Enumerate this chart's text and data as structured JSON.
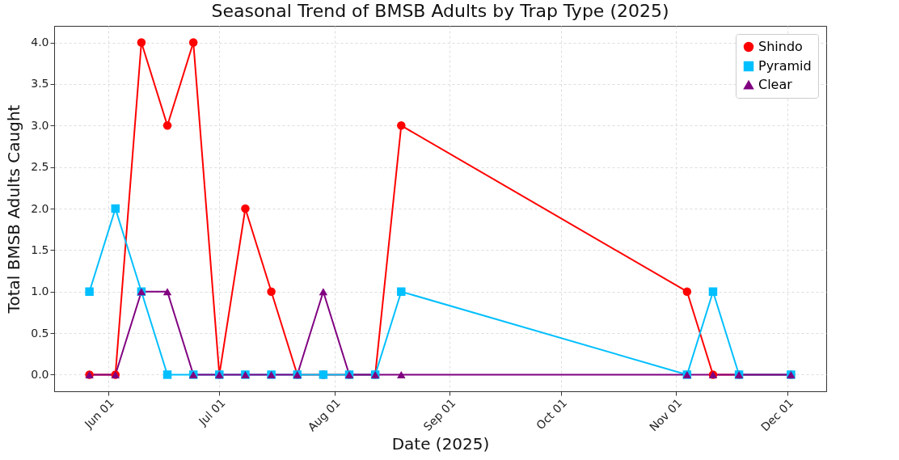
{
  "chart_data": {
    "type": "line",
    "title": "Seasonal Trend of BMSB Adults by Trap Type (2025)",
    "xlabel": "Date (2025)",
    "ylabel": "Total BMSB Adults Caught",
    "x": [
      "2025-05-27",
      "2025-06-03",
      "2025-06-10",
      "2025-06-17",
      "2025-06-24",
      "2025-07-01",
      "2025-07-08",
      "2025-07-15",
      "2025-07-22",
      "2025-07-29",
      "2025-08-05",
      "2025-08-12",
      "2025-08-19",
      "2025-11-04",
      "2025-11-11",
      "2025-11-18",
      "2025-12-02"
    ],
    "series": [
      {
        "name": "Shindo",
        "color": "#ff0000",
        "marker": "circle",
        "values": [
          0,
          0,
          4,
          3,
          4,
          0,
          2,
          1,
          0,
          0,
          0,
          0,
          3,
          1,
          0,
          0,
          0
        ]
      },
      {
        "name": "Pyramid",
        "color": "#00bfff",
        "marker": "square",
        "values": [
          1,
          2,
          1,
          0,
          0,
          0,
          0,
          0,
          0,
          0,
          0,
          0,
          1,
          0,
          1,
          0,
          0
        ]
      },
      {
        "name": "Clear",
        "color": "#800080",
        "marker": "triangle",
        "values": [
          0,
          0,
          1,
          1,
          0,
          0,
          0,
          0,
          0,
          1,
          0,
          0,
          0,
          0,
          0,
          0,
          0
        ]
      }
    ],
    "xlim": [
      "2025-05-17T12:00",
      "2025-12-11T12:00"
    ],
    "xticks": [
      {
        "value": "2025-06-01",
        "label": "Jun 01"
      },
      {
        "value": "2025-07-01",
        "label": "Jul 01"
      },
      {
        "value": "2025-08-01",
        "label": "Aug 01"
      },
      {
        "value": "2025-09-01",
        "label": "Sep 01"
      },
      {
        "value": "2025-10-01",
        "label": "Oct 01"
      },
      {
        "value": "2025-11-01",
        "label": "Nov 01"
      },
      {
        "value": "2025-12-01",
        "label": "Dec 01"
      }
    ],
    "ylim": [
      -0.2,
      4.2
    ],
    "yticks": [
      {
        "value": 0,
        "label": "0.0"
      },
      {
        "value": 0.5,
        "label": "0.5"
      },
      {
        "value": 1,
        "label": "1.0"
      },
      {
        "value": 1.5,
        "label": "1.5"
      },
      {
        "value": 2,
        "label": "2.0"
      },
      {
        "value": 2.5,
        "label": "2.5"
      },
      {
        "value": 3,
        "label": "3.0"
      },
      {
        "value": 3.5,
        "label": "3.5"
      },
      {
        "value": 4,
        "label": "4.0"
      }
    ],
    "grid": true,
    "legend": "top right",
    "line_style": "solid"
  }
}
